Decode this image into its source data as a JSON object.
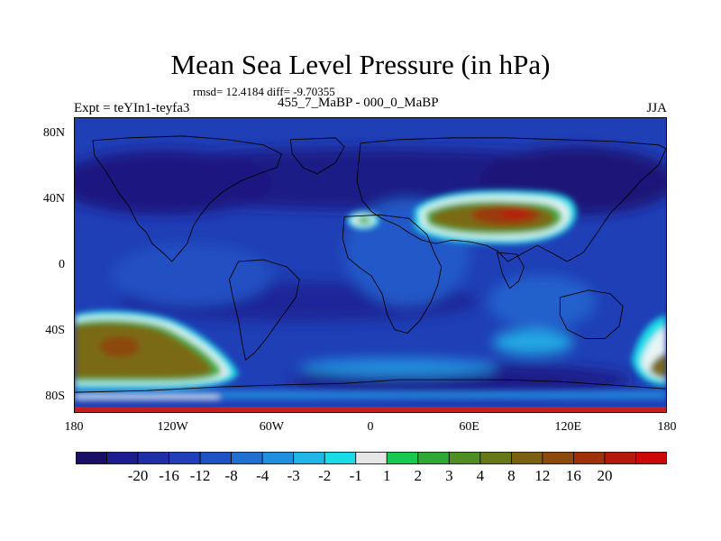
{
  "figure": {
    "title": "Mean Sea Level Pressure (in hPa)",
    "stats": "rmsd= 12.4184 diff= -9.70355",
    "left_label": "Expt = teYIn1-teyfa3",
    "center_label": "455_7_MaBP - 000_0_MaBP",
    "right_label": "JJA"
  },
  "map": {
    "projection": "cylindrical-equidistant",
    "lon_range": [
      -180,
      180
    ],
    "lat_range": [
      -90,
      90
    ],
    "lat_ticks": [
      {
        "value": 80,
        "label": "80N"
      },
      {
        "value": 40,
        "label": "40N"
      },
      {
        "value": 0,
        "label": "0"
      },
      {
        "value": -40,
        "label": "40S"
      },
      {
        "value": -80,
        "label": "80S"
      }
    ],
    "lon_ticks": [
      {
        "value": -180,
        "label": "180"
      },
      {
        "value": -120,
        "label": "120W"
      },
      {
        "value": -60,
        "label": "60W"
      },
      {
        "value": 0,
        "label": "0"
      },
      {
        "value": 60,
        "label": "60E"
      },
      {
        "value": 120,
        "label": "120E"
      },
      {
        "value": 180,
        "label": "180"
      }
    ],
    "field_description": "MSLP difference; strong positive anomaly over central Asia (about 40N, 50E-130E) and over the far South Pacific (45S-65S, 180-110W); negative anomalies (-8 to -16 hPa) over most of the globe; continental outlines drawn as thin black lines"
  },
  "colorbar": {
    "colors": [
      "#1a0f66",
      "#1c1d8e",
      "#1f2fa8",
      "#203fb8",
      "#1f52c4",
      "#1f70d2",
      "#2090de",
      "#20b6e8",
      "#18dde8",
      "#e6e6e6",
      "#18c850",
      "#30a838",
      "#4e8e22",
      "#667818",
      "#7a6010",
      "#8c4a0c",
      "#9e300a",
      "#b41a0a",
      "#cc0808"
    ],
    "labels": [
      "-20",
      "-16",
      "-12",
      "-8",
      "-4",
      "-3",
      "-2",
      "-1",
      "1",
      "2",
      "3",
      "4",
      "8",
      "12",
      "16",
      "20"
    ]
  },
  "chart_data": {
    "type": "heatmap",
    "title": "Mean Sea Level Pressure (in hPa)",
    "subtitle": "455_7_MaBP - 000_0_MaBP",
    "xlabel": "",
    "ylabel": "",
    "xlim": [
      -180,
      180
    ],
    "ylim": [
      -90,
      90
    ],
    "color_levels": [
      -20,
      -16,
      -12,
      -8,
      -4,
      -3,
      -2,
      -1,
      1,
      2,
      3,
      4,
      8,
      12,
      16,
      20
    ],
    "rmsd": 12.4184,
    "diff": -9.70355,
    "season": "JJA",
    "anomaly_regions": [
      {
        "region": "Central Asia high",
        "lon": [
          40,
          130
        ],
        "lat": [
          22,
          44
        ],
        "peak_value": 14
      },
      {
        "region": "South Pacific high",
        "lon": [
          -180,
          -110
        ],
        "lat": [
          -72,
          -40
        ],
        "peak_value": 10
      },
      {
        "region": "Western Mediterranean high",
        "lon": [
          -10,
          5
        ],
        "lat": [
          25,
          32
        ],
        "peak_value": 2
      },
      {
        "region": "Far southeast Pacific high",
        "lon": [
          165,
          180
        ],
        "lat": [
          -70,
          -45
        ],
        "peak_value": 8
      },
      {
        "region": "Background low",
        "lon": [
          -180,
          180
        ],
        "lat": [
          -90,
          90
        ],
        "typical_value": -10
      }
    ]
  }
}
